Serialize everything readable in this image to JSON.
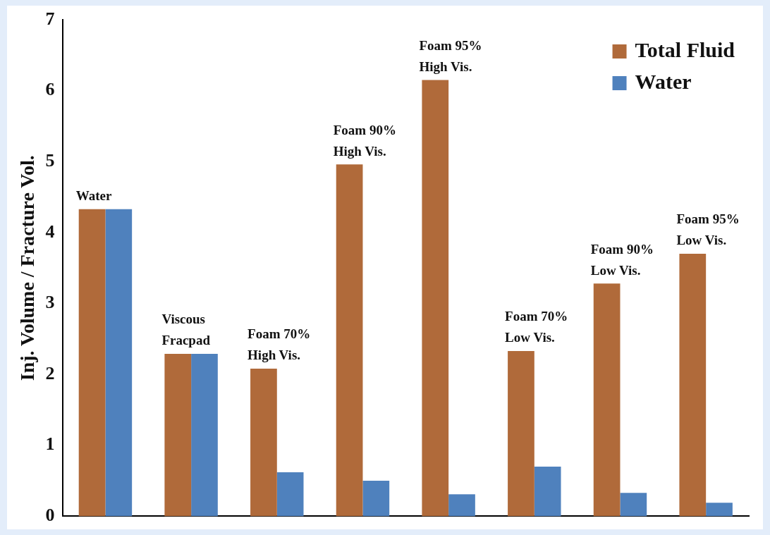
{
  "chart_data": {
    "type": "bar",
    "ylabel": "Inj. Volume / Fracture Vol.",
    "categories": [
      "Water",
      "Viscous\nFracpad",
      "Foam 70%\nHigh Vis.",
      "Foam 90%\nHigh Vis.",
      "Foam 95%\nHigh Vis.",
      "Foam 70%\nLow Vis.",
      "Foam 90%\nLow Vis.",
      "Foam 95%\nLow Vis."
    ],
    "series": [
      {
        "name": "Total Fluid",
        "color": "#b06a3a",
        "values": [
          4.33,
          2.29,
          2.08,
          4.96,
          6.15,
          2.33,
          3.28,
          3.7
        ]
      },
      {
        "name": "Water",
        "color": "#4f81bd",
        "values": [
          4.33,
          2.29,
          0.62,
          0.5,
          0.31,
          0.7,
          0.33,
          0.19
        ]
      }
    ],
    "ylim": [
      0,
      7
    ],
    "yticks": [
      0,
      1,
      2,
      3,
      4,
      5,
      6,
      7
    ],
    "grid": false,
    "legend": "top right"
  }
}
